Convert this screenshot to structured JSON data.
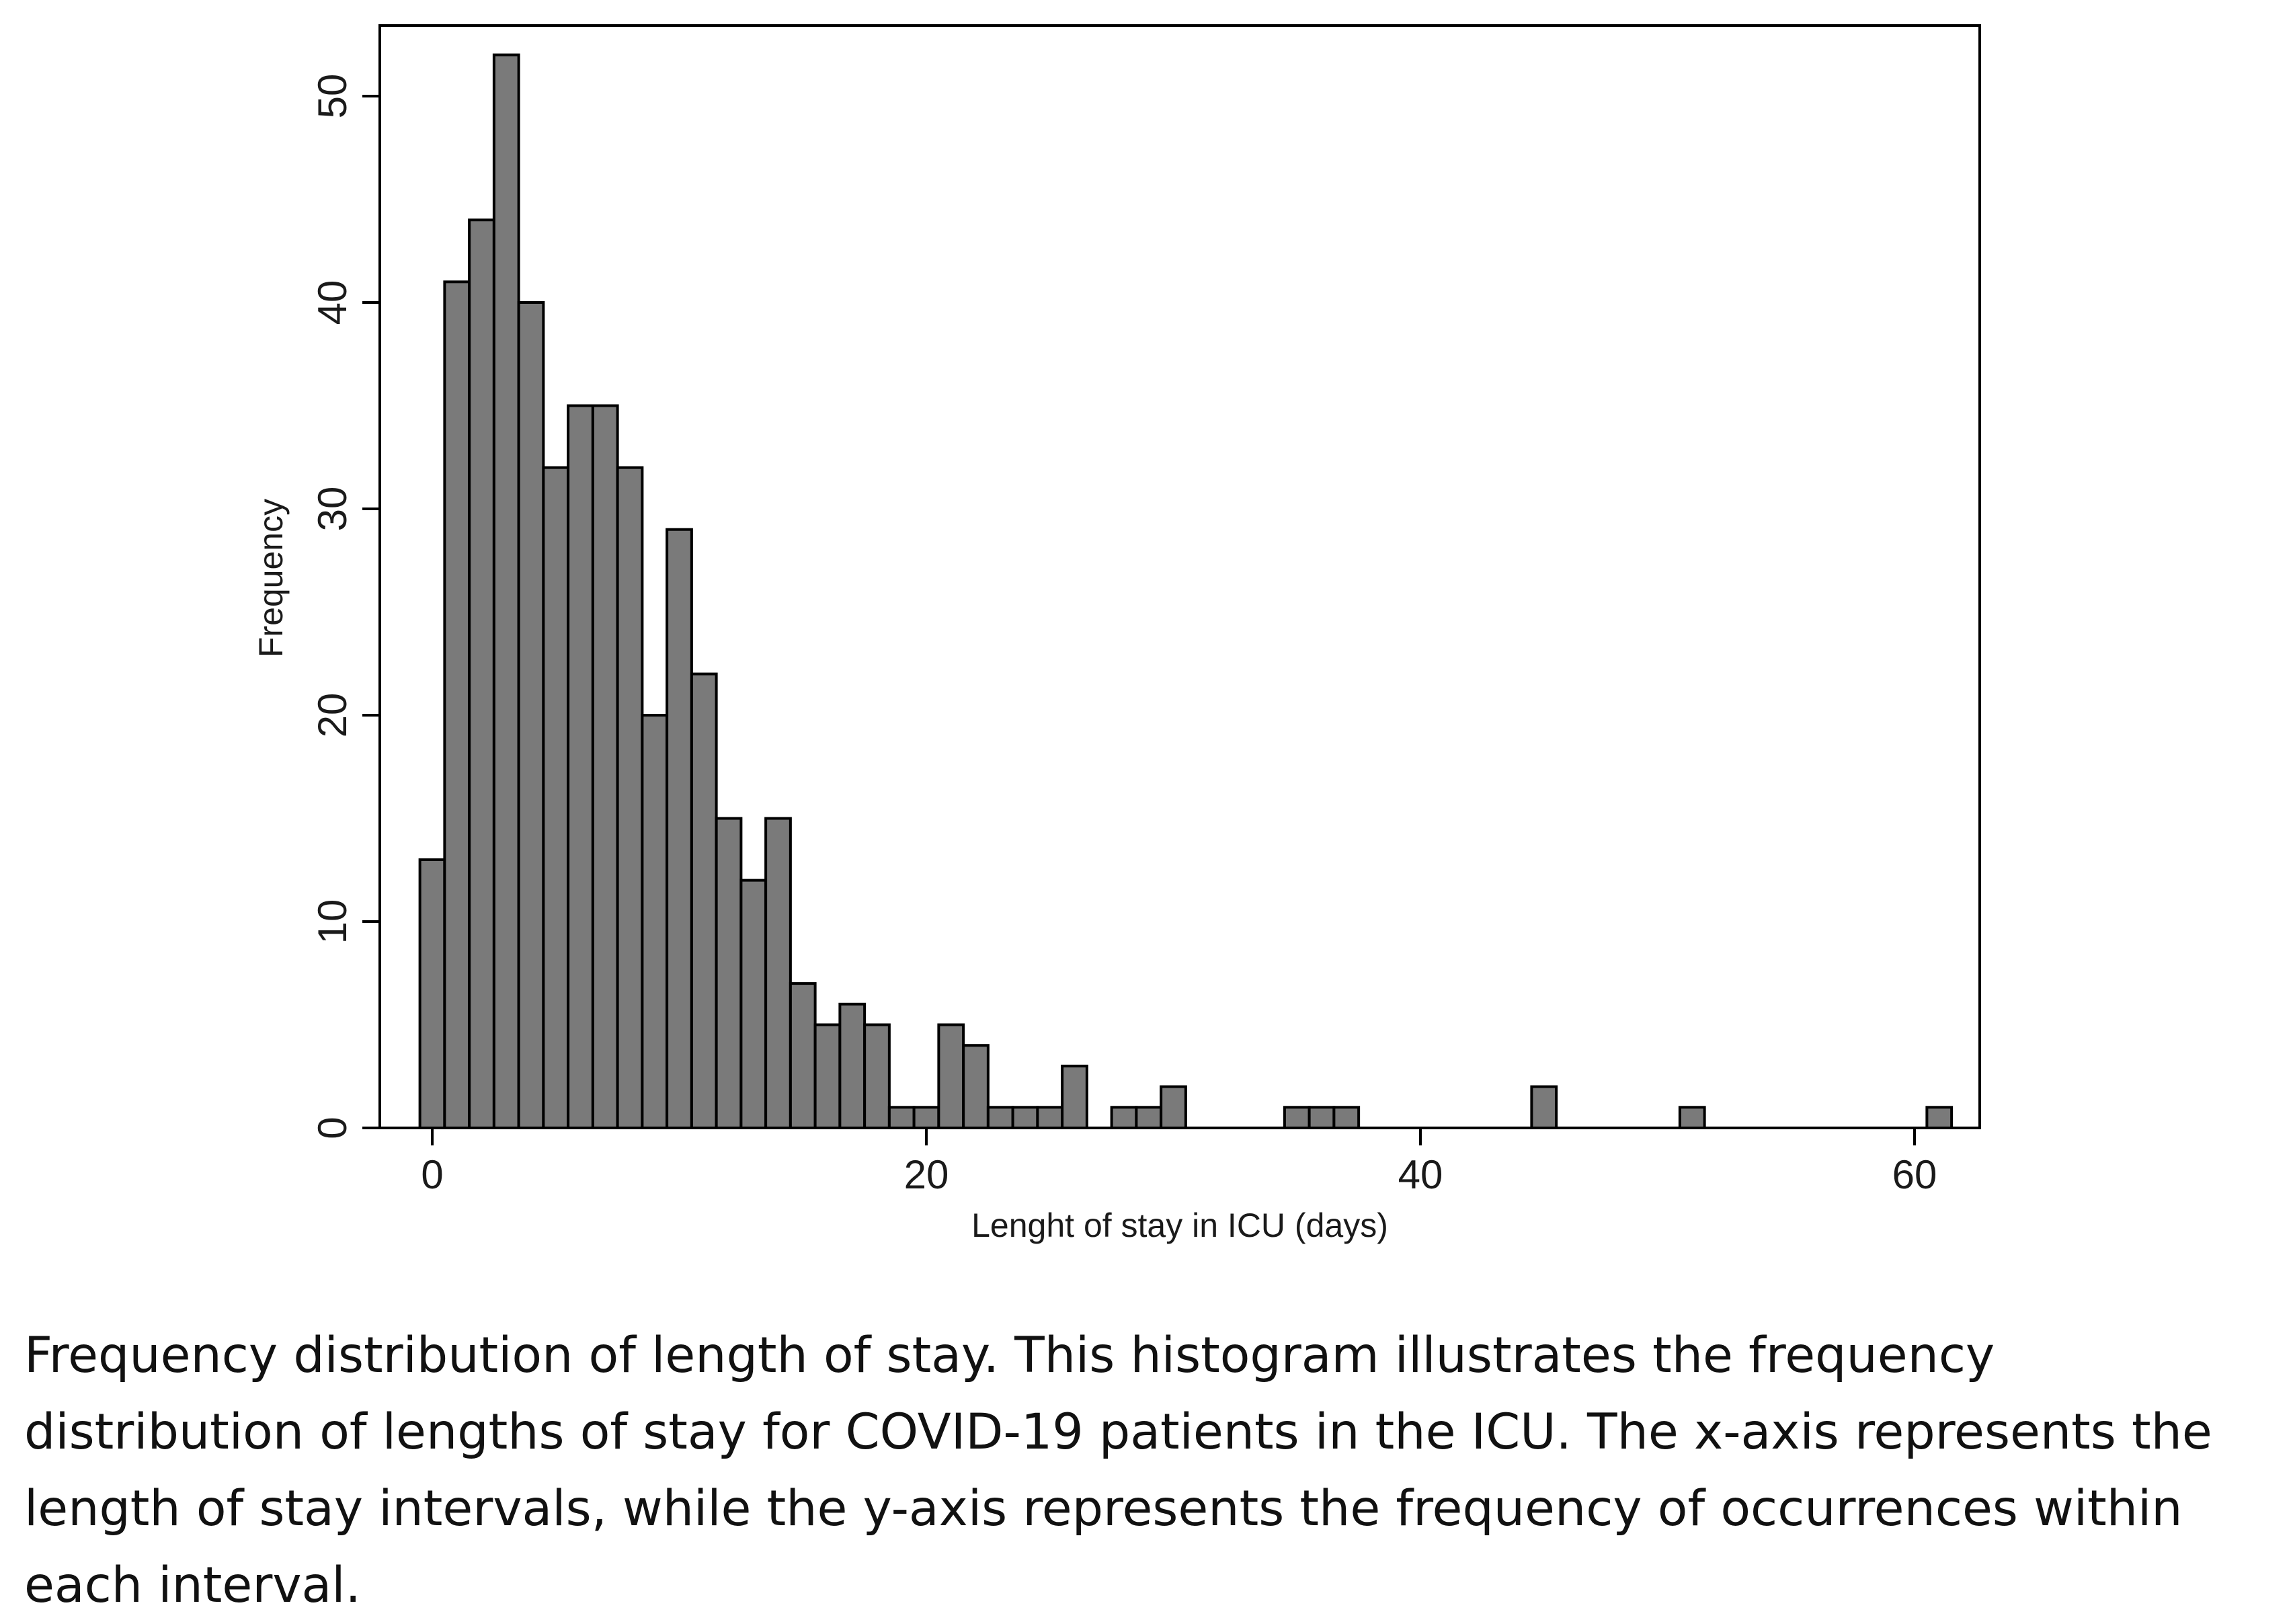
{
  "chart_data": {
    "type": "bar",
    "title": "",
    "xlabel": "Lenght of stay in ICU (days)",
    "ylabel": "Frequency",
    "xlim": [
      -2,
      62
    ],
    "ylim": [
      0,
      53
    ],
    "bin_width": 1,
    "x_ticks": [
      0,
      20,
      40,
      60
    ],
    "y_ticks": [
      0,
      10,
      20,
      30,
      40,
      50
    ],
    "bars": [
      {
        "x": 0,
        "value": 13
      },
      {
        "x": 1,
        "value": 41
      },
      {
        "x": 2,
        "value": 44
      },
      {
        "x": 3,
        "value": 52
      },
      {
        "x": 4,
        "value": 40
      },
      {
        "x": 5,
        "value": 32
      },
      {
        "x": 6,
        "value": 35
      },
      {
        "x": 7,
        "value": 35
      },
      {
        "x": 8,
        "value": 32
      },
      {
        "x": 9,
        "value": 20
      },
      {
        "x": 10,
        "value": 29
      },
      {
        "x": 11,
        "value": 22
      },
      {
        "x": 12,
        "value": 15
      },
      {
        "x": 13,
        "value": 12
      },
      {
        "x": 14,
        "value": 15
      },
      {
        "x": 15,
        "value": 7
      },
      {
        "x": 16,
        "value": 5
      },
      {
        "x": 17,
        "value": 6
      },
      {
        "x": 18,
        "value": 5
      },
      {
        "x": 19,
        "value": 1
      },
      {
        "x": 20,
        "value": 1
      },
      {
        "x": 21,
        "value": 5
      },
      {
        "x": 22,
        "value": 4
      },
      {
        "x": 23,
        "value": 1
      },
      {
        "x": 24,
        "value": 1
      },
      {
        "x": 25,
        "value": 1
      },
      {
        "x": 26,
        "value": 3
      },
      {
        "x": 28,
        "value": 1
      },
      {
        "x": 29,
        "value": 1
      },
      {
        "x": 30,
        "value": 2
      },
      {
        "x": 35,
        "value": 1
      },
      {
        "x": 36,
        "value": 1
      },
      {
        "x": 37,
        "value": 1
      },
      {
        "x": 45,
        "value": 2
      },
      {
        "x": 51,
        "value": 1
      },
      {
        "x": 61,
        "value": 1
      }
    ],
    "bar_color": "#7a7a7a",
    "bar_edge_color": "#000000"
  },
  "caption": "Frequency distribution of length of stay. This histogram illustrates the frequency distribution of lengths of stay for COVID-19 patients in the ICU. The x-axis represents the length of stay intervals, while the y-axis represents the frequency of occurrences within each interval."
}
